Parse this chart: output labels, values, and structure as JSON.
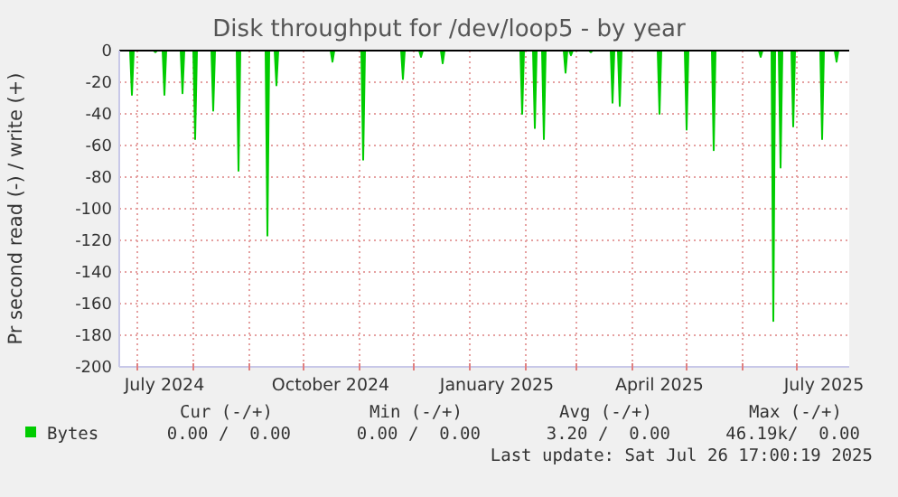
{
  "chart_data": {
    "type": "area",
    "title": "Disk throughput for /dev/loop5 - by year",
    "ylabel": "Pr second read (-) / write (+)",
    "xlim": [
      "2024-06-21",
      "2025-07-30"
    ],
    "ylim": [
      -200,
      0
    ],
    "yticks": [
      0,
      -20,
      -40,
      -60,
      -80,
      -100,
      -120,
      -140,
      -160,
      -180,
      -200
    ],
    "xticks": [
      {
        "value": "2024-07-01",
        "label": null
      },
      {
        "value": "2024-07-16",
        "label": "July 2024"
      },
      {
        "value": "2024-08-01",
        "label": null
      },
      {
        "value": "2024-09-01",
        "label": null
      },
      {
        "value": "2024-10-01",
        "label": null
      },
      {
        "value": "2024-10-16",
        "label": "October 2024"
      },
      {
        "value": "2024-11-01",
        "label": null
      },
      {
        "value": "2024-12-01",
        "label": null
      },
      {
        "value": "2025-01-01",
        "label": null
      },
      {
        "value": "2025-01-16",
        "label": "January 2025"
      },
      {
        "value": "2025-02-01",
        "label": null
      },
      {
        "value": "2025-03-01",
        "label": null
      },
      {
        "value": "2025-04-01",
        "label": null
      },
      {
        "value": "2025-04-16",
        "label": "April 2025"
      },
      {
        "value": "2025-05-01",
        "label": null
      },
      {
        "value": "2025-06-01",
        "label": null
      },
      {
        "value": "2025-07-01",
        "label": null
      },
      {
        "value": "2025-07-16",
        "label": "July 2025"
      }
    ],
    "grid": true,
    "legend": "bottom left",
    "series": [
      {
        "name": "Bytes",
        "color": "#00cc00",
        "x": [
          "2024-06-21",
          "2024-06-27",
          "2024-06-28",
          "2024-06-29",
          "2024-07-10",
          "2024-07-11",
          "2024-07-12",
          "2024-07-15",
          "2024-07-16",
          "2024-07-17",
          "2024-07-25",
          "2024-07-26",
          "2024-07-27",
          "2024-08-01",
          "2024-08-02",
          "2024-08-03",
          "2024-08-11",
          "2024-08-12",
          "2024-08-13",
          "2024-08-25",
          "2024-08-26",
          "2024-08-27",
          "2024-09-10",
          "2024-09-11",
          "2024-09-12",
          "2024-09-15",
          "2024-09-16",
          "2024-09-17",
          "2024-10-16",
          "2024-10-17",
          "2024-10-18",
          "2024-11-02",
          "2024-11-03",
          "2024-11-04",
          "2024-11-24",
          "2024-11-25",
          "2024-11-26",
          "2024-12-04",
          "2024-12-05",
          "2024-12-06",
          "2024-12-16",
          "2024-12-17",
          "2024-12-18",
          "2025-01-29",
          "2025-01-30",
          "2025-01-31",
          "2025-02-05",
          "2025-02-06",
          "2025-02-07",
          "2025-02-10",
          "2025-02-11",
          "2025-02-12",
          "2025-02-22",
          "2025-02-23",
          "2025-02-24",
          "2025-02-25",
          "2025-02-26",
          "2025-02-27",
          "2025-03-08",
          "2025-03-09",
          "2025-03-10",
          "2025-03-20",
          "2025-03-21",
          "2025-03-22",
          "2025-03-24",
          "2025-03-25",
          "2025-03-26",
          "2025-04-15",
          "2025-04-16",
          "2025-04-17",
          "2025-04-30",
          "2025-05-01",
          "2025-05-02",
          "2025-05-15",
          "2025-05-16",
          "2025-05-17",
          "2025-06-10",
          "2025-06-11",
          "2025-06-12",
          "2025-06-17",
          "2025-06-18",
          "2025-06-19",
          "2025-06-21",
          "2025-06-22",
          "2025-06-23",
          "2025-06-28",
          "2025-06-29",
          "2025-06-30",
          "2025-07-14",
          "2025-07-15",
          "2025-07-16",
          "2025-07-22",
          "2025-07-23",
          "2025-07-24",
          "2025-07-26"
        ],
        "values": [
          0,
          0,
          -28,
          0,
          0,
          -1,
          0,
          0,
          -28,
          0,
          0,
          -27,
          0,
          0,
          -56,
          0,
          0,
          -38,
          0,
          0,
          -76,
          0,
          0,
          -117,
          0,
          0,
          -22,
          0,
          0,
          -7,
          0,
          0,
          -69,
          0,
          0,
          -18,
          0,
          0,
          -4,
          0,
          0,
          -8,
          0,
          0,
          -40,
          0,
          0,
          -49,
          0,
          0,
          -56,
          0,
          0,
          -14,
          0,
          0,
          -3,
          0,
          0,
          -1,
          0,
          0,
          -33,
          0,
          0,
          -35,
          0,
          0,
          -40,
          0,
          0,
          -50,
          0,
          0,
          -63,
          0,
          0,
          -4,
          0,
          0,
          -171,
          0,
          0,
          -74,
          0,
          0,
          -48,
          0,
          0,
          -56,
          0,
          0,
          -7,
          0,
          0
        ]
      }
    ],
    "annotations": [
      "Cur (-/+)",
      "Min (-/+)",
      "Avg (-/+)",
      "Max (-/+)",
      "0.00 /  0.00",
      "0.00 /  0.00",
      "3.20 /  0.00",
      "46.19k/  0.00",
      "Last update: Sat Jul 26 17:00:19 2025"
    ]
  }
}
